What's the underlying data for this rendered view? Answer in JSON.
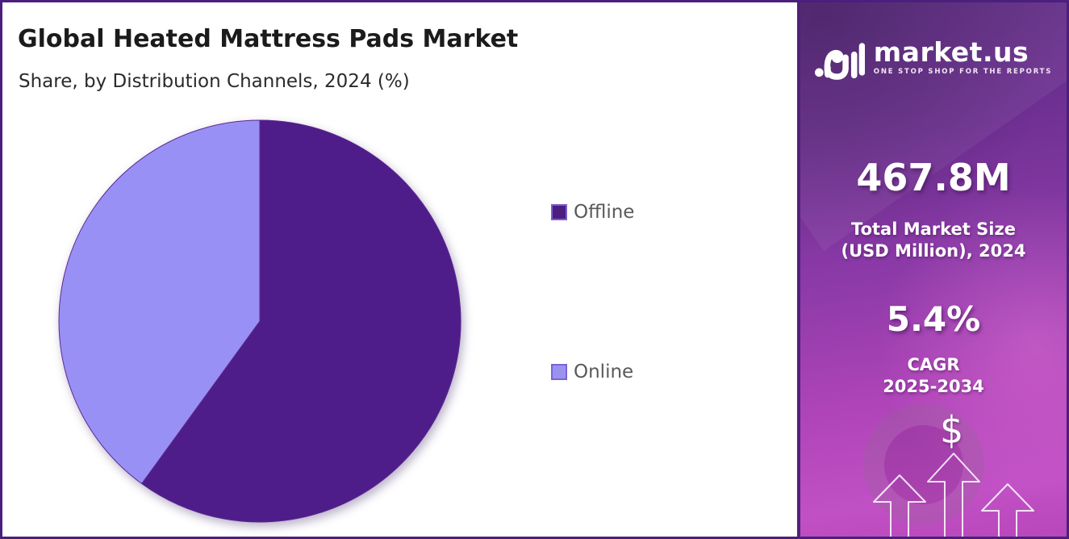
{
  "header": {
    "title": "Global Heated Mattress Pads Market",
    "subtitle": "Share, by Distribution Channels, 2024 (%)"
  },
  "chart_data": {
    "type": "pie",
    "title": "Global Heated Mattress Pads Market — Share, by Distribution Channels, 2024 (%)",
    "categories": [
      "Offline",
      "Online"
    ],
    "values": [
      60,
      40
    ],
    "units": "%",
    "colors": [
      "#4e1d89",
      "#9990f5"
    ],
    "slice_edge_color": "#5b2a92",
    "start_angle_deg": 0,
    "direction": "clockwise",
    "legend_position": "right",
    "legend_markers": [
      {
        "fill": "#4b1e80",
        "border": "#7c5ccf"
      },
      {
        "fill": "#9b92f0",
        "border": "#7a63d8"
      }
    ]
  },
  "panel": {
    "brand": "market.us",
    "tagline": "ONE STOP SHOP FOR THE REPORTS",
    "market_size_value": "467.8M",
    "market_size_label_1": "Total Market Size",
    "market_size_label_2": "(USD Million), 2024",
    "cagr_value": "5.4%",
    "cagr_label_1": "CAGR",
    "cagr_label_2": "2025-2034",
    "dollar_symbol": "$"
  },
  "colors": {
    "frame_border": "#4a1f7d",
    "panel_gradient_top": "#5e2b82",
    "panel_gradient_bottom": "#b847bb",
    "title_text": "#1b1b1b",
    "legend_text": "#595959",
    "slice_offline": "#4e1d89",
    "slice_online": "#9990f5"
  }
}
